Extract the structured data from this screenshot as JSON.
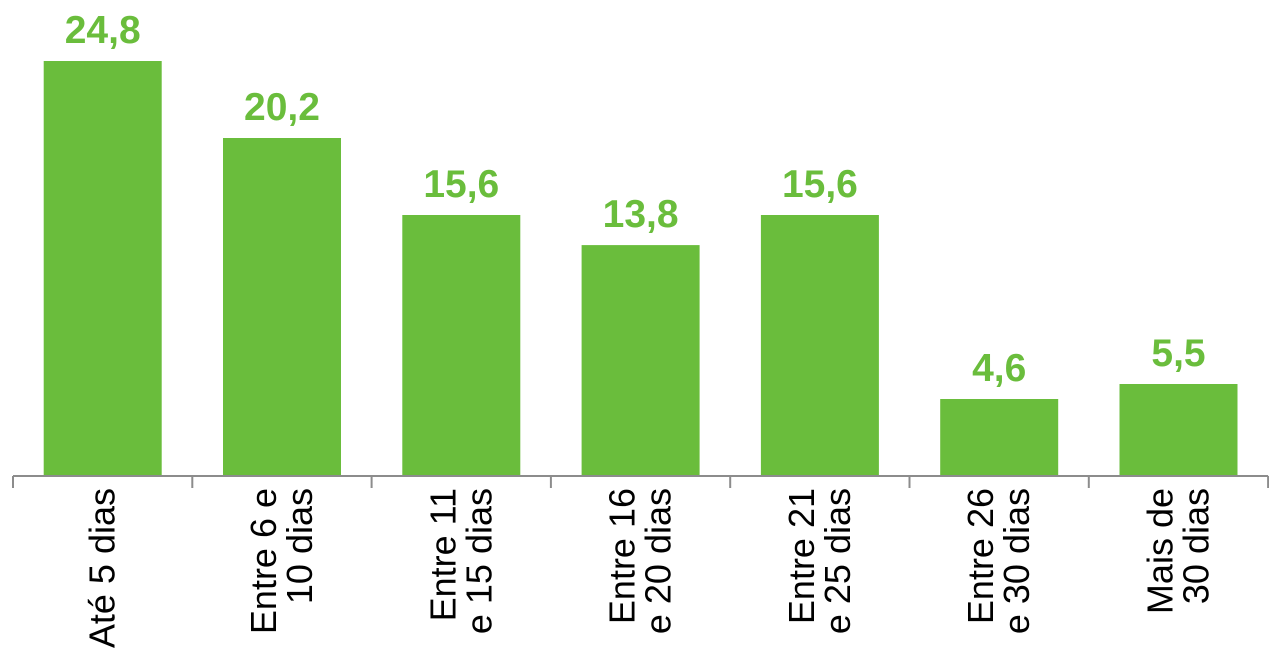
{
  "chart_data": {
    "type": "bar",
    "categories": [
      "Até 5 dias",
      "Entre 6 e 10 dias",
      "Entre 11 e 15 dias",
      "Entre 16 e 20 dias",
      "Entre 21 e 25 dias",
      "Entre 26 e 30 dias",
      "Mais de 30 dias"
    ],
    "category_lines": [
      [
        "Até 5 dias"
      ],
      [
        "Entre 6 e",
        "10 dias"
      ],
      [
        "Entre 11",
        "e 15 dias"
      ],
      [
        "Entre 16",
        "e 20 dias"
      ],
      [
        "Entre 21",
        "e 25 dias"
      ],
      [
        "Entre 26",
        "e 30 dias"
      ],
      [
        "Mais de",
        "30 dias"
      ]
    ],
    "values": [
      24.8,
      20.2,
      15.6,
      13.8,
      15.6,
      4.6,
      5.5
    ],
    "value_labels": [
      "24,8",
      "20,2",
      "15,6",
      "13,8",
      "15,6",
      "4,6",
      "5,5"
    ],
    "title": "",
    "xlabel": "",
    "ylabel": "",
    "ylim": [
      0,
      24.8
    ],
    "grid": false,
    "legend": "none",
    "colors": {
      "bar": "#6abd3c",
      "value_label": "#6abd3c",
      "axis": "#8c8c8c"
    }
  }
}
